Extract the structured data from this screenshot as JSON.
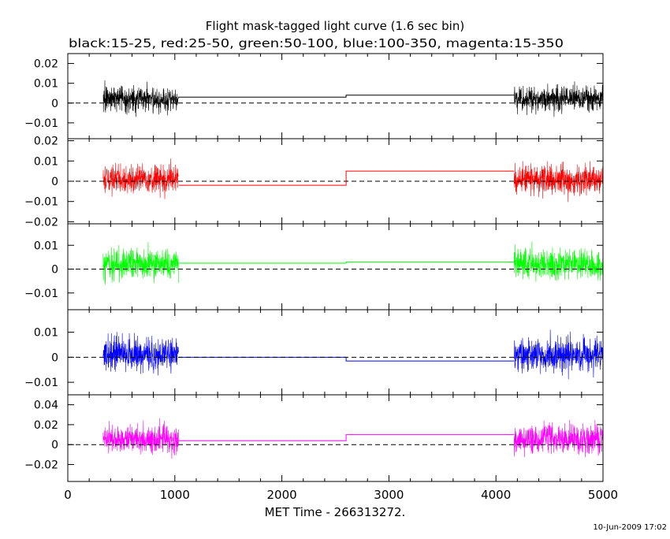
{
  "chart_data": {
    "type": "line",
    "title": "Flight mask-tagged light curve (1.6 sec bin)",
    "subtitle": "black:15-25, red:25-50, green:50-100, blue:100-350, magenta:15-350",
    "xlabel": "MET Time - 266313272.",
    "xlim": [
      0,
      5000
    ],
    "x_ticks": [
      0,
      1000,
      2000,
      3000,
      4000,
      5000
    ],
    "grid": false,
    "bin_seconds": 1.6,
    "data_intervals": [
      [
        330,
        1035
      ],
      [
        4170,
        5000
      ]
    ],
    "footer": "10-Jun-2009 17:02",
    "panels": [
      {
        "name": "15-25",
        "color": "#000000",
        "ylim": [
          -0.018,
          0.025
        ],
        "y_ticks": [
          -0.01,
          0,
          0.01,
          0.02
        ],
        "y_tick_labels": [
          "−0.01",
          "0",
          "0.01",
          "0.02"
        ],
        "noise_sigma": 0.0045,
        "mean": 0.002,
        "steps": [
          [
            1035,
            2600,
            0.003
          ],
          [
            2600,
            4170,
            0.004
          ]
        ]
      },
      {
        "name": "25-50",
        "color": "#ff0000",
        "ylim": [
          -0.021,
          0.021
        ],
        "y_ticks": [
          -0.02,
          -0.01,
          0,
          0.01,
          0.02
        ],
        "y_tick_labels": [
          "−0.02",
          "−0.01",
          "0",
          "0.01",
          "0.02"
        ],
        "noise_sigma": 0.005,
        "mean": 0.001,
        "steps": [
          [
            1035,
            2600,
            -0.002
          ],
          [
            2600,
            4170,
            0.005
          ]
        ]
      },
      {
        "name": "50-100",
        "color": "#00ff00",
        "ylim": [
          -0.017,
          0.019
        ],
        "y_ticks": [
          -0.01,
          0,
          0.01
        ],
        "y_tick_labels": [
          "−0.01",
          "0",
          "0.01"
        ],
        "noise_sigma": 0.0045,
        "mean": 0.002,
        "steps": [
          [
            1035,
            2600,
            0.0025
          ],
          [
            2600,
            4170,
            0.003
          ]
        ]
      },
      {
        "name": "100-350",
        "color": "#0000ff",
        "ylim": [
          -0.015,
          0.019
        ],
        "y_ticks": [
          -0.01,
          0,
          0.01
        ],
        "y_tick_labels": [
          "−0.01",
          "0",
          "0.01"
        ],
        "noise_sigma": 0.0045,
        "mean": 0.001,
        "steps": [
          [
            1035,
            2600,
            0.0
          ],
          [
            2600,
            4170,
            -0.0015
          ]
        ]
      },
      {
        "name": "15-350",
        "color": "#ff00ff",
        "ylim": [
          -0.037,
          0.05
        ],
        "y_ticks": [
          -0.02,
          0,
          0.02,
          0.04
        ],
        "y_tick_labels": [
          "−0.02",
          "0",
          "0.02",
          "0.04"
        ],
        "noise_sigma": 0.01,
        "mean": 0.005,
        "steps": [
          [
            1035,
            2600,
            0.004
          ],
          [
            2600,
            4170,
            0.01
          ]
        ]
      }
    ]
  }
}
